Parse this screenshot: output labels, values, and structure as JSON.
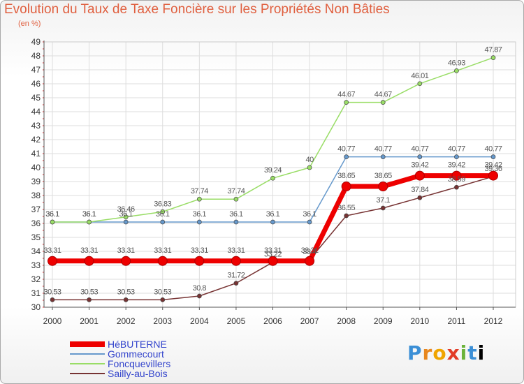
{
  "chart_data": {
    "type": "line",
    "title": "Evolution du Taux de Taxe Foncière sur les Propriétés Non Bâties",
    "subtitle": "(en %)",
    "xlabel": "",
    "ylabel": "",
    "x": [
      "2000",
      "2001",
      "2002",
      "2003",
      "2004",
      "2005",
      "2006",
      "2007",
      "2008",
      "2009",
      "2010",
      "2011",
      "2012"
    ],
    "ylim": [
      30,
      49
    ],
    "yticks": [
      30,
      31,
      32,
      33,
      34,
      35,
      36,
      37,
      38,
      39,
      40,
      41,
      42,
      43,
      44,
      45,
      46,
      47,
      48,
      49
    ],
    "grid": true,
    "legend_position": "bottom-left",
    "series": [
      {
        "name": "HéBUTERNE",
        "color": "#ee0000",
        "width": 7,
        "values": [
          33.31,
          33.31,
          33.31,
          33.31,
          33.31,
          33.31,
          33.31,
          33.31,
          38.65,
          38.65,
          39.42,
          39.42,
          39.42
        ]
      },
      {
        "name": "Gommecourt",
        "color": "#6699cc",
        "width": 1.5,
        "values": [
          36.1,
          36.1,
          36.1,
          36.1,
          36.1,
          36.1,
          36.1,
          36.1,
          40.77,
          40.77,
          40.77,
          40.77,
          40.77
        ]
      },
      {
        "name": "Foncquevillers",
        "color": "#99dd66",
        "width": 1.5,
        "values": [
          36.1,
          36.1,
          36.46,
          36.83,
          37.74,
          37.74,
          39.24,
          40,
          44.67,
          44.67,
          46.01,
          46.93,
          47.87
        ]
      },
      {
        "name": "Sailly-au-Bois",
        "color": "#773333",
        "width": 1.5,
        "values": [
          30.53,
          30.53,
          30.53,
          30.53,
          30.8,
          31.72,
          33.22,
          33.4,
          36.55,
          37.1,
          37.84,
          38.59,
          39.36
        ]
      }
    ]
  },
  "logo": {
    "letters": [
      "P",
      "r",
      "o",
      "x",
      "i",
      "t",
      "i"
    ],
    "text": "Proxiti"
  }
}
